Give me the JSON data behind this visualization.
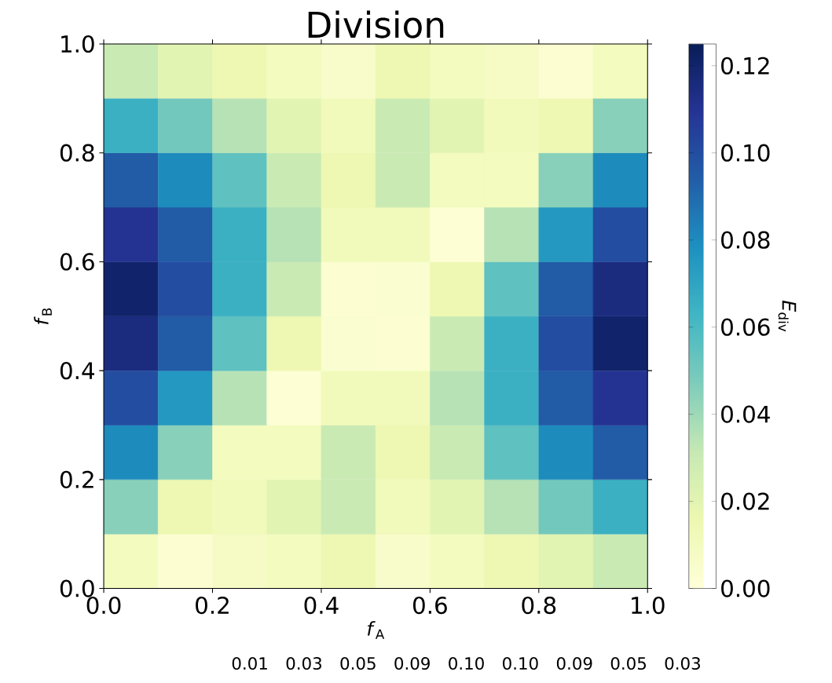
{
  "chart_data": {
    "type": "heatmap",
    "title": "Division",
    "xlabel": "*f*$_{A}$",
    "ylabel": "*f*$_{B}$",
    "clabel": "*E*$_{div}$",
    "xlim": [
      0,
      1
    ],
    "ylim": [
      0,
      1
    ],
    "xticks": [
      {
        "value": 0,
        "label": "0.0"
      },
      {
        "value": 0.2,
        "label": "0.2"
      },
      {
        "value": 0.4,
        "label": "0.4"
      },
      {
        "value": 0.6,
        "label": "0.6"
      },
      {
        "value": 0.8,
        "label": "0.8"
      },
      {
        "value": 1,
        "label": "1.0"
      }
    ],
    "yticks": [
      {
        "value": 0,
        "label": "0.0"
      },
      {
        "value": 0.2,
        "label": "0.2"
      },
      {
        "value": 0.4,
        "label": "0.4"
      },
      {
        "value": 0.6,
        "label": "0.6"
      },
      {
        "value": 0.8,
        "label": "0.8"
      },
      {
        "value": 1,
        "label": "1.0"
      }
    ],
    "clim": [
      0,
      0.125
    ],
    "cticks": [
      {
        "value": 0,
        "label": "0.00"
      },
      {
        "value": 0.02,
        "label": "0.02"
      },
      {
        "value": 0.04,
        "label": "0.04"
      },
      {
        "value": 0.06,
        "label": "0.06"
      },
      {
        "value": 0.08,
        "label": "0.08"
      },
      {
        "value": 0.1,
        "label": "0.10"
      },
      {
        "value": 0.12,
        "label": "0.12"
      }
    ],
    "cells": [
      [
        0.03,
        0.02,
        0.015,
        0.01,
        0.006,
        0.015,
        0.01,
        0.008,
        0.003,
        0.01
      ],
      [
        0.065,
        0.05,
        0.035,
        0.02,
        0.012,
        0.03,
        0.02,
        0.012,
        0.015,
        0.045
      ],
      [
        0.095,
        0.08,
        0.055,
        0.03,
        0.015,
        0.03,
        0.01,
        0.01,
        0.045,
        0.08
      ],
      [
        0.11,
        0.095,
        0.065,
        0.035,
        0.012,
        0.012,
        0.002,
        0.035,
        0.075,
        0.1
      ],
      [
        0.12,
        0.1,
        0.065,
        0.03,
        0.003,
        0.004,
        0.015,
        0.055,
        0.095,
        0.115
      ],
      [
        0.115,
        0.095,
        0.055,
        0.015,
        0.004,
        0.003,
        0.03,
        0.065,
        0.1,
        0.12
      ],
      [
        0.1,
        0.075,
        0.035,
        0.002,
        0.012,
        0.012,
        0.035,
        0.065,
        0.095,
        0.11
      ],
      [
        0.08,
        0.045,
        0.01,
        0.01,
        0.03,
        0.015,
        0.03,
        0.055,
        0.08,
        0.095
      ],
      [
        0.045,
        0.015,
        0.012,
        0.02,
        0.03,
        0.012,
        0.02,
        0.035,
        0.05,
        0.065
      ],
      [
        0.01,
        0.003,
        0.008,
        0.01,
        0.015,
        0.006,
        0.01,
        0.015,
        0.02,
        0.03
      ]
    ],
    "annotations": [
      "0.01",
      "0.03",
      "0.05",
      "0.09",
      "0.10",
      "0.10",
      "0.09",
      "0.05",
      "0.03"
    ]
  }
}
